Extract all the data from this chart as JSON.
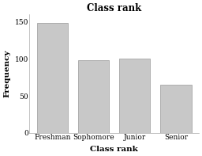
{
  "title": "Class rank",
  "xlabel": "Class rank",
  "ylabel": "Frequency",
  "categories": [
    "Freshman",
    "Sophomore",
    "Junior",
    "Senior"
  ],
  "values": [
    149,
    98,
    100,
    65
  ],
  "bar_color": "#c8c8c8",
  "bar_edge_color": "#999999",
  "ylim": [
    0,
    160
  ],
  "yticks": [
    0,
    50,
    100,
    150
  ],
  "background_color": "#ffffff",
  "title_fontsize": 8.5,
  "label_fontsize": 7.5,
  "tick_fontsize": 6.5,
  "bar_width": 0.75,
  "figsize": [
    2.56,
    1.97
  ],
  "dpi": 100
}
